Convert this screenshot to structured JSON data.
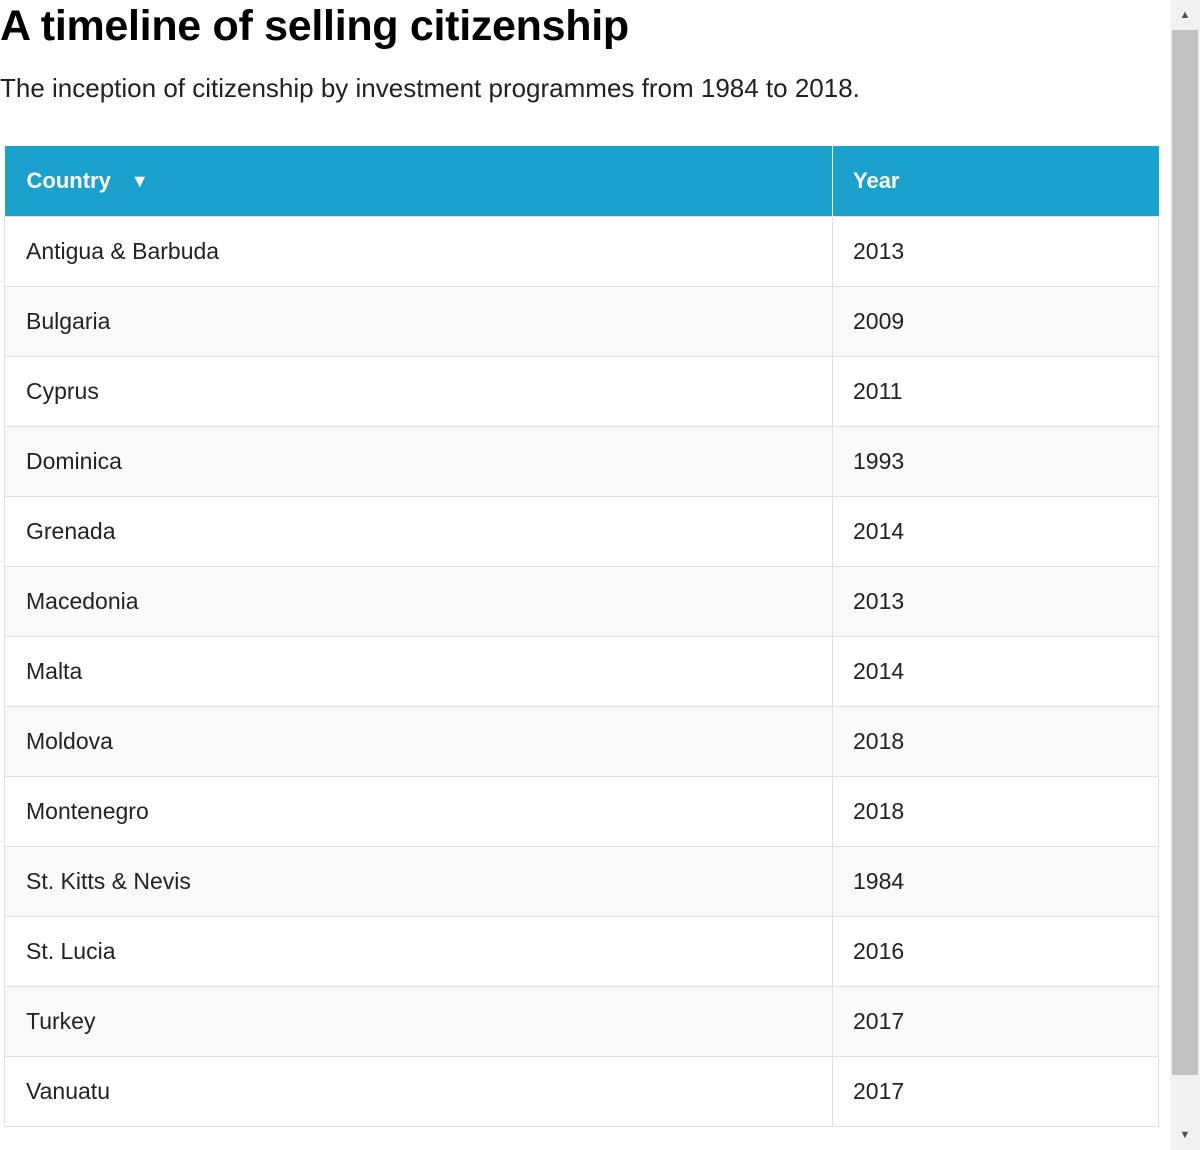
{
  "header": {
    "title": "A timeline of selling citizenship",
    "subtitle": "The inception of citizenship by investment programmes from 1984 to 2018."
  },
  "table": {
    "columns": {
      "country": "Country",
      "year": "Year"
    },
    "sort": {
      "column": "Country",
      "icon": "sort-down-icon",
      "glyph": "▼"
    },
    "rows": [
      {
        "country": "Antigua & Barbuda",
        "year": "2013"
      },
      {
        "country": "Bulgaria",
        "year": "2009"
      },
      {
        "country": "Cyprus",
        "year": "2011"
      },
      {
        "country": "Dominica",
        "year": "1993"
      },
      {
        "country": "Grenada",
        "year": "2014"
      },
      {
        "country": "Macedonia",
        "year": "2013"
      },
      {
        "country": "Malta",
        "year": "2014"
      },
      {
        "country": "Moldova",
        "year": "2018"
      },
      {
        "country": "Montenegro",
        "year": "2018"
      },
      {
        "country": "St. Kitts & Nevis",
        "year": "1984"
      },
      {
        "country": "St. Lucia",
        "year": "2016"
      },
      {
        "country": "Turkey",
        "year": "2017"
      },
      {
        "country": "Vanuatu",
        "year": "2017"
      }
    ]
  },
  "scrollbar": {
    "up_glyph": "▲",
    "down_glyph": "▼"
  },
  "colors": {
    "header_background": "#1ba1ce",
    "header_text": "#ffffff",
    "row_alt_background": "#f9f9f9",
    "border": "#e0e0e0"
  }
}
